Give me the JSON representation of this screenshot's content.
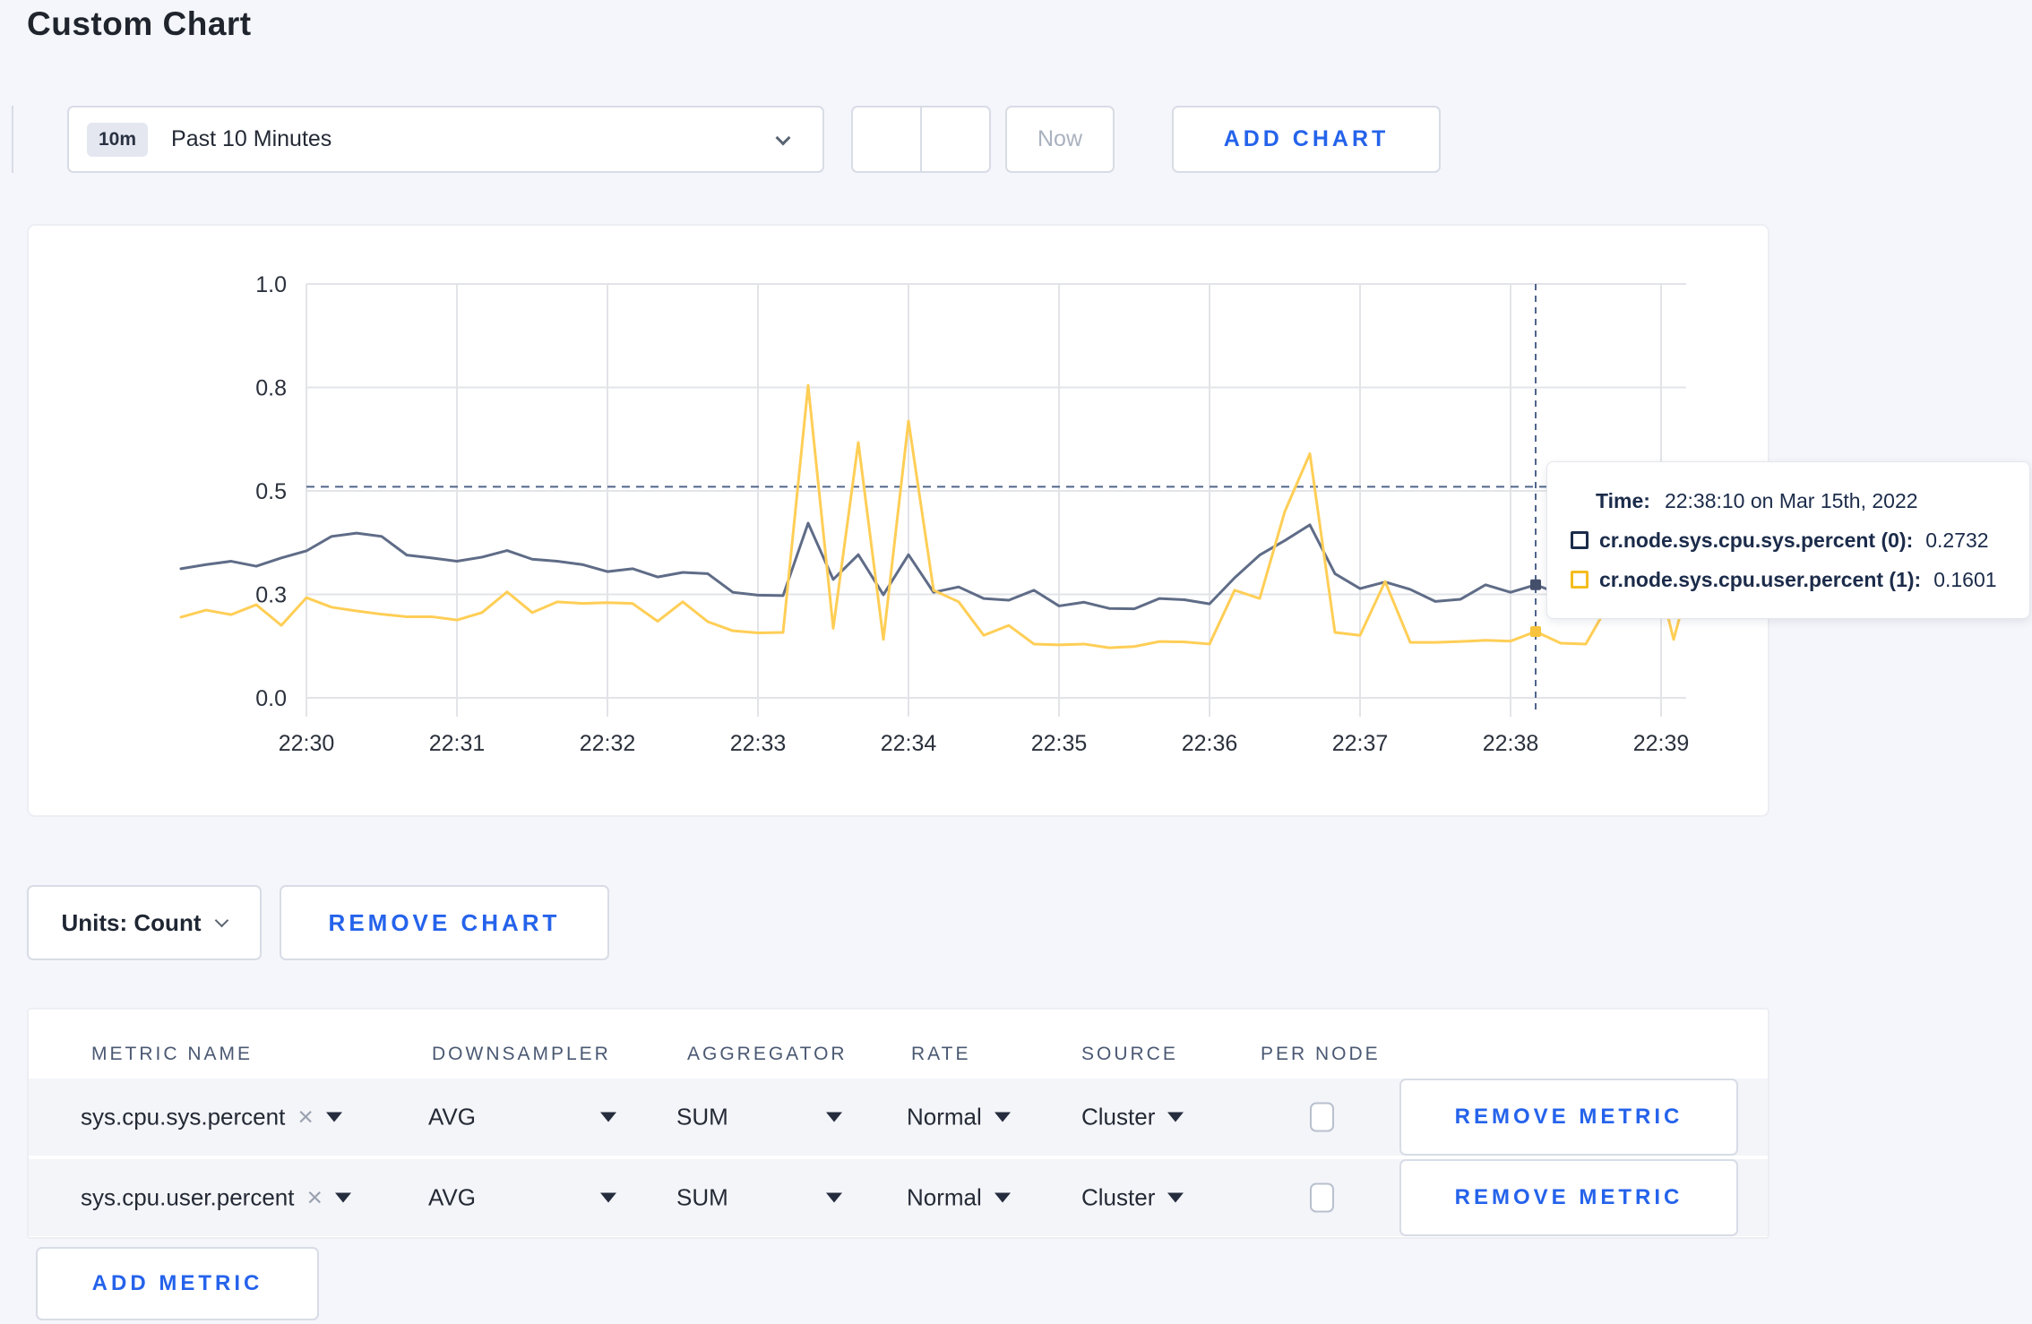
{
  "page": {
    "title": "Custom Chart"
  },
  "toolbar": {
    "range_badge": "10m",
    "range_label": "Past 10 Minutes",
    "prev": "chevron-left",
    "next": "chevron-right",
    "now_label": "Now",
    "add_chart_label": "ADD CHART"
  },
  "colors": {
    "accent_blue": "#2563eb",
    "series_sys": "#5f6c87",
    "series_user": "#ffce56",
    "crosshair": "#50658a",
    "gridline": "#e3e4e8",
    "page_background": "#f5f6fb"
  },
  "chart": {
    "tooltip": {
      "time_label": "Time:",
      "time_value": "22:38:10 on Mar 15th, 2022",
      "entries": [
        {
          "label": "cr.node.sys.cpu.sys.percent (0):",
          "value": "0.2732",
          "swatch_color": "#1b2b4a"
        },
        {
          "label": "cr.node.sys.cpu.user.percent (1):",
          "value": "0.1601",
          "swatch_color": "#f5bd1f"
        }
      ]
    }
  },
  "chart_data": {
    "type": "line",
    "title": "",
    "xlabel": "",
    "ylabel": "",
    "x_unit": "seconds relative to 22:30:00 on Mar 15th, 2022",
    "x_tick_seconds": [
      0,
      60,
      120,
      180,
      240,
      300,
      360,
      420,
      480,
      540
    ],
    "x_tick_labels": [
      "22:30",
      "22:31",
      "22:32",
      "22:33",
      "22:34",
      "22:35",
      "22:36",
      "22:37",
      "22:38",
      "22:39"
    ],
    "ylim": [
      0,
      1
    ],
    "y_ticks": [
      0,
      0.25,
      0.5,
      0.75,
      1.0
    ],
    "y_tick_labels": [
      "0.0",
      "0.3",
      "0.5",
      "0.8",
      "1.0"
    ],
    "grid": true,
    "legend_position": "tooltip",
    "crosshair": {
      "x_seconds": 490,
      "time": "22:38:10 on Mar 15th, 2022",
      "hline_value": 0.51,
      "points": [
        {
          "series": "cr.node.sys.cpu.sys.percent",
          "value": 0.2732,
          "marker_color": "#44506b"
        },
        {
          "series": "cr.node.sys.cpu.user.percent",
          "value": 0.1601,
          "marker_color": "#f7c33c"
        }
      ]
    },
    "series": [
      {
        "name": "cr.node.sys.cpu.sys.percent",
        "color": "#5f6c87",
        "points": [
          [
            -50,
            0.312
          ],
          [
            -40,
            0.322
          ],
          [
            -30,
            0.33
          ],
          [
            -20,
            0.318
          ],
          [
            -10,
            0.338
          ],
          [
            0,
            0.355
          ],
          [
            10,
            0.39
          ],
          [
            20,
            0.398
          ],
          [
            30,
            0.39
          ],
          [
            40,
            0.345
          ],
          [
            50,
            0.338
          ],
          [
            60,
            0.33
          ],
          [
            70,
            0.34
          ],
          [
            80,
            0.356
          ],
          [
            90,
            0.335
          ],
          [
            100,
            0.33
          ],
          [
            110,
            0.322
          ],
          [
            120,
            0.305
          ],
          [
            130,
            0.312
          ],
          [
            140,
            0.292
          ],
          [
            150,
            0.303
          ],
          [
            160,
            0.3
          ],
          [
            170,
            0.255
          ],
          [
            180,
            0.248
          ],
          [
            190,
            0.247
          ],
          [
            200,
            0.422
          ],
          [
            210,
            0.286
          ],
          [
            220,
            0.346
          ],
          [
            230,
            0.249
          ],
          [
            240,
            0.346
          ],
          [
            250,
            0.255
          ],
          [
            260,
            0.268
          ],
          [
            270,
            0.24
          ],
          [
            280,
            0.236
          ],
          [
            290,
            0.26
          ],
          [
            300,
            0.222
          ],
          [
            310,
            0.231
          ],
          [
            320,
            0.216
          ],
          [
            330,
            0.215
          ],
          [
            340,
            0.24
          ],
          [
            350,
            0.237
          ],
          [
            360,
            0.227
          ],
          [
            370,
            0.29
          ],
          [
            380,
            0.345
          ],
          [
            390,
            0.38
          ],
          [
            400,
            0.418
          ],
          [
            410,
            0.3
          ],
          [
            420,
            0.264
          ],
          [
            430,
            0.28
          ],
          [
            440,
            0.262
          ],
          [
            450,
            0.233
          ],
          [
            460,
            0.238
          ],
          [
            470,
            0.273
          ],
          [
            480,
            0.255
          ],
          [
            490,
            0.2732
          ],
          [
            500,
            0.25
          ],
          [
            510,
            0.242
          ],
          [
            520,
            0.253
          ],
          [
            530,
            0.3
          ],
          [
            540,
            0.28
          ],
          [
            550,
            0.3
          ]
        ]
      },
      {
        "name": "cr.node.sys.cpu.user.percent",
        "color": "#ffce56",
        "points": [
          [
            -50,
            0.195
          ],
          [
            -40,
            0.212
          ],
          [
            -30,
            0.201
          ],
          [
            -20,
            0.225
          ],
          [
            -10,
            0.175
          ],
          [
            0,
            0.242
          ],
          [
            10,
            0.219
          ],
          [
            20,
            0.21
          ],
          [
            30,
            0.202
          ],
          [
            40,
            0.196
          ],
          [
            50,
            0.196
          ],
          [
            60,
            0.188
          ],
          [
            70,
            0.206
          ],
          [
            80,
            0.256
          ],
          [
            90,
            0.206
          ],
          [
            100,
            0.232
          ],
          [
            110,
            0.228
          ],
          [
            120,
            0.23
          ],
          [
            130,
            0.228
          ],
          [
            140,
            0.185
          ],
          [
            150,
            0.232
          ],
          [
            160,
            0.184
          ],
          [
            170,
            0.162
          ],
          [
            180,
            0.157
          ],
          [
            190,
            0.158
          ],
          [
            200,
            0.755
          ],
          [
            210,
            0.168
          ],
          [
            220,
            0.617
          ],
          [
            230,
            0.141
          ],
          [
            240,
            0.669
          ],
          [
            250,
            0.26
          ],
          [
            260,
            0.232
          ],
          [
            270,
            0.151
          ],
          [
            280,
            0.175
          ],
          [
            290,
            0.13
          ],
          [
            300,
            0.128
          ],
          [
            310,
            0.13
          ],
          [
            320,
            0.121
          ],
          [
            330,
            0.124
          ],
          [
            340,
            0.136
          ],
          [
            350,
            0.135
          ],
          [
            360,
            0.13
          ],
          [
            370,
            0.26
          ],
          [
            380,
            0.24
          ],
          [
            390,
            0.45
          ],
          [
            400,
            0.59
          ],
          [
            410,
            0.158
          ],
          [
            420,
            0.151
          ],
          [
            430,
            0.281
          ],
          [
            440,
            0.134
          ],
          [
            450,
            0.134
          ],
          [
            460,
            0.136
          ],
          [
            470,
            0.139
          ],
          [
            480,
            0.137
          ],
          [
            490,
            0.1601
          ],
          [
            500,
            0.132
          ],
          [
            510,
            0.13
          ],
          [
            520,
            0.236
          ],
          [
            530,
            0.279
          ],
          [
            540,
            0.264
          ],
          [
            545,
            0.141
          ],
          [
            550,
            0.253
          ]
        ]
      }
    ]
  },
  "chart_controls": {
    "units_label": "Units: Count",
    "remove_chart_label": "REMOVE CHART"
  },
  "metrics_table": {
    "headers": [
      "METRIC NAME",
      "DOWNSAMPLER",
      "AGGREGATOR",
      "RATE",
      "SOURCE",
      "PER NODE"
    ],
    "rows": [
      {
        "metric": "sys.cpu.sys.percent",
        "downsampler": "AVG",
        "aggregator": "SUM",
        "rate": "Normal",
        "source": "Cluster",
        "per_node_checked": false,
        "remove_label": "REMOVE METRIC"
      },
      {
        "metric": "sys.cpu.user.percent",
        "downsampler": "AVG",
        "aggregator": "SUM",
        "rate": "Normal",
        "source": "Cluster",
        "per_node_checked": false,
        "remove_label": "REMOVE METRIC"
      }
    ],
    "add_metric_label": "ADD METRIC"
  }
}
